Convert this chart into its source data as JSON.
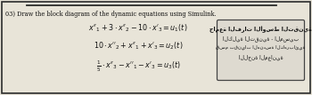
{
  "title_text": "03) Draw the block diagram of the dynamic equations using Simulink.",
  "eq1": "$x''_1 + 3 \\cdot x''_2 - 10 \\cdot x'_3 = u_1(t)$",
  "eq2": "$10 \\cdot x''_2 + x''_1 + x'_3 = u_2(t)$",
  "eq3": "$\\frac{1}{5} \\cdot x''_3 - x''_1 - x'_3 = u_3(t)$",
  "arabic_line1": "جامعة الفرات الأوسط التقنية",
  "arabic_line2": "الكلية التقنية - المسيب",
  "arabic_line3": "قسم تقنيات الهندسة الكهربائية",
  "arabic_line4": "اللجنة المعانية",
  "bg_color": "#e8e4d8",
  "border_color": "#2a2a2a",
  "text_color": "#111111",
  "box_border_color": "#444444",
  "box_bg_color": "#dedad0",
  "top_line_color": "#2a2a2a"
}
